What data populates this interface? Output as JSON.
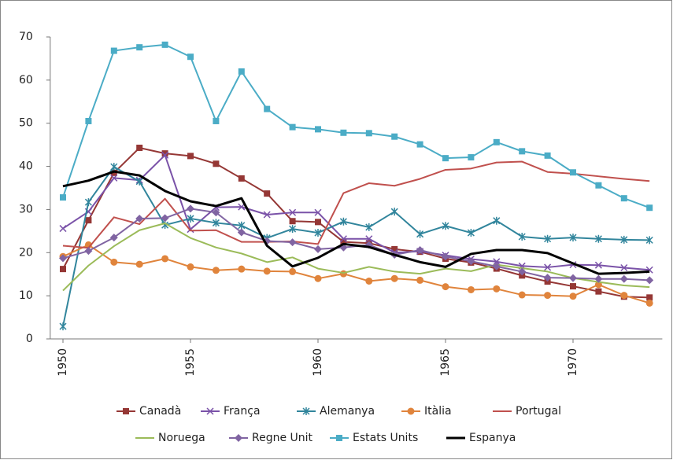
{
  "chart_data": {
    "type": "line",
    "x": [
      1950,
      1951,
      1952,
      1953,
      1954,
      1955,
      1956,
      1957,
      1958,
      1959,
      1960,
      1961,
      1962,
      1963,
      1964,
      1965,
      1966,
      1967,
      1968,
      1969,
      1970,
      1971,
      1972,
      1973
    ],
    "xlim": [
      1949.5,
      1973.5
    ],
    "xticks": [
      1950,
      1955,
      1960,
      1965,
      1970
    ],
    "ylim": [
      0,
      70
    ],
    "yticks": [
      0,
      10,
      20,
      30,
      40,
      50,
      60,
      70
    ],
    "grid": false,
    "legend": "bottom",
    "series": [
      {
        "name": "Canadà",
        "color": "#953735",
        "marker": "square",
        "values": [
          16.2,
          27.5,
          38.5,
          44.3,
          43,
          42.4,
          40.6,
          37.2,
          33.7,
          27.3,
          27.1,
          22.5,
          22.2,
          20.8,
          20.2,
          18.6,
          17.7,
          16.3,
          14.7,
          13.3,
          12.2,
          11,
          9.8,
          9.6
        ]
      },
      {
        "name": "França",
        "color": "#7a52a8",
        "marker": "x",
        "values": [
          25.6,
          29.5,
          37.3,
          36.8,
          42.6,
          25.4,
          30.5,
          30.6,
          28.8,
          29.3,
          29.3,
          23.2,
          23.2,
          20,
          20.3,
          19.4,
          18.5,
          17.9,
          16.9,
          16.6,
          17.2,
          17.1,
          16.5,
          16
        ]
      },
      {
        "name": "Alemanya",
        "color": "#31859c",
        "marker": "asterisk",
        "values": [
          2.9,
          31.7,
          39.9,
          36.5,
          26.4,
          27.9,
          26.9,
          26.3,
          23.4,
          25.5,
          24.6,
          27.2,
          25.9,
          29.5,
          24.3,
          26.2,
          24.6,
          27.4,
          23.7,
          23.2,
          23.5,
          23.2,
          23,
          22.9
        ]
      },
      {
        "name": "Itàlia",
        "color": "#e0843c",
        "marker": "circle",
        "values": [
          19.1,
          21.8,
          17.8,
          17.3,
          18.6,
          16.7,
          15.9,
          16.2,
          15.7,
          15.6,
          14,
          15.1,
          13.4,
          14,
          13.6,
          12.1,
          11.4,
          11.6,
          10.2,
          10.1,
          9.9,
          12.6,
          10.1,
          8.3
        ]
      },
      {
        "name": "Portugal",
        "color": "#c0504d",
        "marker": "none",
        "values": [
          21.6,
          21.1,
          28.2,
          26.6,
          32.5,
          25.1,
          25.2,
          22.5,
          22.5,
          22.6,
          22,
          33.8,
          36.1,
          35.5,
          37.1,
          39.2,
          39.5,
          40.9,
          41.1,
          38.7,
          38.3,
          37.7,
          37.1,
          36.6
        ]
      },
      {
        "name": "Noruega",
        "color": "#9bbb59",
        "marker": "none",
        "values": [
          11.2,
          17,
          21.5,
          25.2,
          26.8,
          23.4,
          21.2,
          19.8,
          17.8,
          18.9,
          16.3,
          15.3,
          16.7,
          15.6,
          15.1,
          16.3,
          15.7,
          17.2,
          16.4,
          15.6,
          14.1,
          13.2,
          12.4,
          12
        ]
      },
      {
        "name": "Regne Unit",
        "color": "#8064a2",
        "marker": "diamond",
        "values": [
          18.7,
          20.4,
          23.5,
          27.9,
          28,
          30.2,
          29.3,
          24.7,
          22.7,
          22.4,
          20.8,
          21.2,
          21.8,
          19.5,
          20.6,
          19.1,
          18,
          16.8,
          15.6,
          14.2,
          14.1,
          13.9,
          13.9,
          13.6
        ]
      },
      {
        "name": "Estats Units",
        "color": "#4bacc6",
        "marker": "square",
        "values": [
          32.8,
          50.5,
          66.8,
          67.6,
          68.2,
          65.4,
          50.5,
          62,
          53.3,
          49.1,
          48.6,
          47.8,
          47.7,
          46.9,
          45.1,
          41.9,
          42.1,
          45.6,
          43.5,
          42.5,
          38.6,
          35.6,
          32.6,
          30.4
        ]
      },
      {
        "name": "Espanya",
        "color": "#000000",
        "marker": "none",
        "values": [
          35.4,
          36.7,
          38.8,
          37.9,
          34.3,
          31.9,
          30.8,
          32.6,
          21.6,
          16.8,
          18.8,
          22,
          21.3,
          19.5,
          17.8,
          16.7,
          19.7,
          20.6,
          20.6,
          19.9,
          17.5,
          15.1,
          15.3,
          15.6
        ]
      }
    ]
  }
}
